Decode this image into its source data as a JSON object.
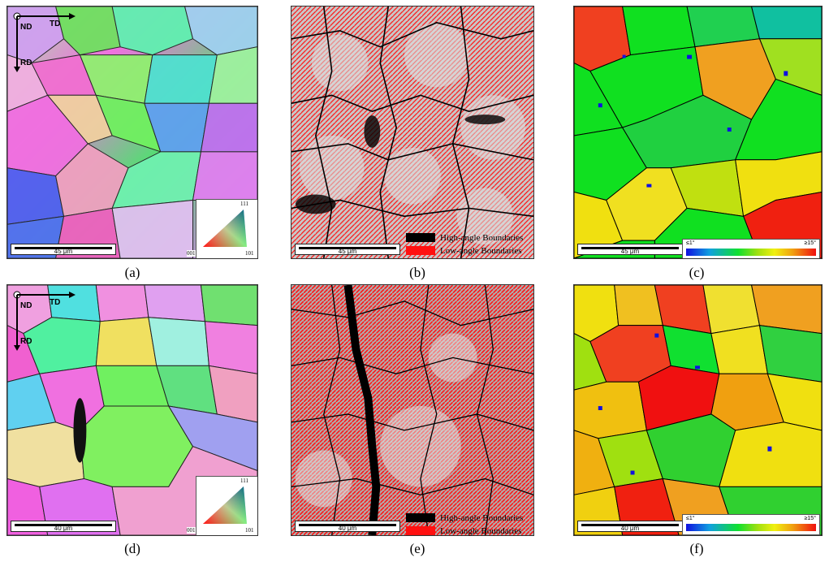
{
  "panels": {
    "a": {
      "caption": "(a)",
      "scale": "45 μm",
      "axis_nd": "ND",
      "axis_td": "TD",
      "axis_rd": "RD",
      "ipf_top": "111",
      "ipf_left": "001",
      "ipf_right": "101"
    },
    "b": {
      "caption": "(b)",
      "scale": "45 μm",
      "high_label": "High-angle Boundaries",
      "low_label": "Low-angle Boundaries"
    },
    "c": {
      "caption": "(c)",
      "scale": "45 μm",
      "kam_min": "≤1°",
      "kam_max": "≥15°"
    },
    "d": {
      "caption": "(d)",
      "scale": "40 μm",
      "axis_nd": "ND",
      "axis_td": "TD",
      "axis_rd": "RD",
      "ipf_top": "111",
      "ipf_left": "001",
      "ipf_right": "101"
    },
    "e": {
      "caption": "(e)",
      "scale": "40 μm",
      "high_label": "High-angle Boundaries",
      "low_label": "Low-angle Boundaries"
    },
    "f": {
      "caption": "(f)",
      "scale": "40 μm",
      "kam_min": "≤1°",
      "kam_max": "≥15°"
    }
  },
  "colors": {
    "high_angle": "#000000",
    "low_angle": "#ff1010"
  }
}
